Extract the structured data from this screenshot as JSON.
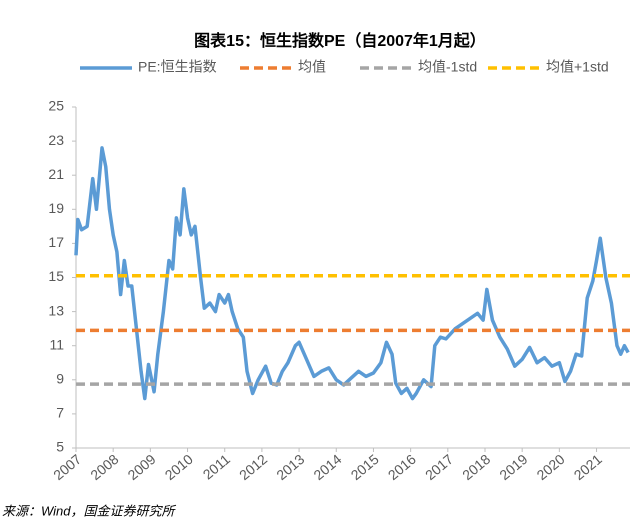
{
  "chart_data": {
    "type": "line",
    "title": "图表15：恒生指数PE（自2007年1月起）",
    "source": "来源：Wind，国金证券研究所",
    "series": [
      {
        "name": "PE:恒生指数",
        "color": "#5b9bd5",
        "x": [
          2007.0,
          2007.05,
          2007.15,
          2007.3,
          2007.45,
          2007.55,
          2007.7,
          2007.8,
          2007.9,
          2008.0,
          2008.1,
          2008.2,
          2008.3,
          2008.4,
          2008.5,
          2008.6,
          2008.75,
          2008.85,
          2008.95,
          2009.1,
          2009.2,
          2009.35,
          2009.5,
          2009.6,
          2009.7,
          2009.8,
          2009.9,
          2010.0,
          2010.1,
          2010.2,
          2010.35,
          2010.45,
          2010.6,
          2010.75,
          2010.85,
          2011.0,
          2011.1,
          2011.2,
          2011.35,
          2011.5,
          2011.6,
          2011.75,
          2011.9,
          2012.1,
          2012.25,
          2012.4,
          2012.55,
          2012.7,
          2012.9,
          2013.0,
          2013.2,
          2013.4,
          2013.6,
          2013.8,
          2014.0,
          2014.2,
          2014.4,
          2014.6,
          2014.8,
          2015.0,
          2015.2,
          2015.35,
          2015.5,
          2015.6,
          2015.75,
          2015.9,
          2016.05,
          2016.15,
          2016.35,
          2016.55,
          2016.65,
          2016.8,
          2016.95,
          2017.2,
          2017.4,
          2017.6,
          2017.8,
          2017.95,
          2018.05,
          2018.2,
          2018.4,
          2018.6,
          2018.8,
          2019.0,
          2019.2,
          2019.4,
          2019.6,
          2019.8,
          2020.0,
          2020.15,
          2020.3,
          2020.45,
          2020.6,
          2020.75,
          2020.9,
          2021.0,
          2021.1,
          2021.25,
          2021.4,
          2021.55,
          2021.65,
          2021.75,
          2021.85
        ],
        "values": [
          16.3,
          18.4,
          17.8,
          18.0,
          20.8,
          19.0,
          22.6,
          21.5,
          19.0,
          17.5,
          16.5,
          14.0,
          16.0,
          14.5,
          14.5,
          12.5,
          9.5,
          7.9,
          9.9,
          8.3,
          10.5,
          13.0,
          16.0,
          15.5,
          18.5,
          17.5,
          20.2,
          18.5,
          17.5,
          18.0,
          15.0,
          13.2,
          13.5,
          13.0,
          14.0,
          13.5,
          14.0,
          13.0,
          12.0,
          11.5,
          9.5,
          8.2,
          9.0,
          9.8,
          8.8,
          8.7,
          9.5,
          10.0,
          11.0,
          11.2,
          10.2,
          9.2,
          9.5,
          9.7,
          9.0,
          8.7,
          9.1,
          9.5,
          9.2,
          9.4,
          10.0,
          11.2,
          10.5,
          8.8,
          8.2,
          8.5,
          7.9,
          8.2,
          9.0,
          8.6,
          11.0,
          11.5,
          11.4,
          12.0,
          12.3,
          12.6,
          12.9,
          12.5,
          14.3,
          12.5,
          11.5,
          10.8,
          9.8,
          10.2,
          10.9,
          10.0,
          10.3,
          9.8,
          10.0,
          8.9,
          9.5,
          10.5,
          10.4,
          13.8,
          14.8,
          16.0,
          17.3,
          15.0,
          13.5,
          11.0,
          10.5,
          11.0,
          10.6
        ]
      }
    ],
    "reference_lines": [
      {
        "name": "均值",
        "color": "#ed7d31",
        "value": 11.9
      },
      {
        "name": "均值-1std",
        "color": "#a5a5a5",
        "value": 8.75
      },
      {
        "name": "均值+1std",
        "color": "#ffc000",
        "value": 15.1
      }
    ],
    "xlim": [
      2007,
      2021.9
    ],
    "xticks": [
      2007,
      2008,
      2009,
      2010,
      2011,
      2012,
      2013,
      2014,
      2015,
      2016,
      2017,
      2018,
      2019,
      2020,
      2021
    ],
    "ylim": [
      5,
      25
    ],
    "yticks": [
      5,
      7,
      9,
      11,
      13,
      15,
      17,
      19,
      21,
      23,
      25
    ]
  }
}
